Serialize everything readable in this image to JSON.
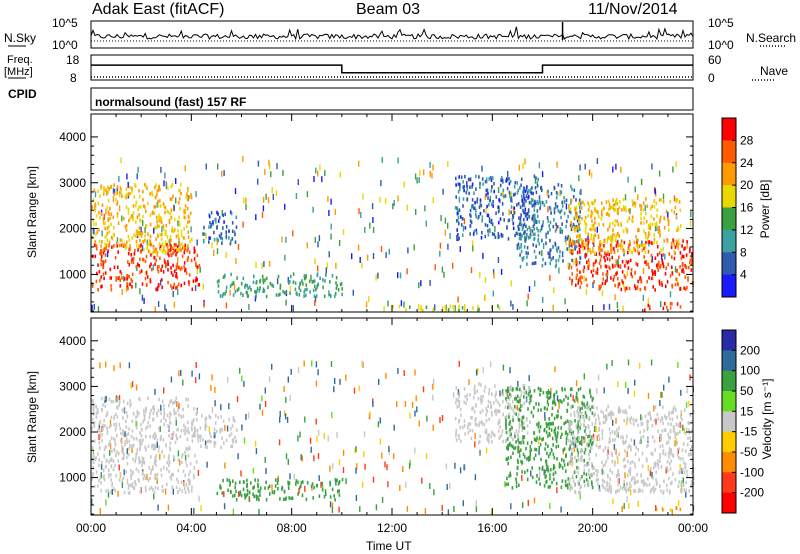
{
  "header": {
    "title": "Adak East (fitACF)",
    "beam": "Beam 03",
    "date": "11/Nov/2014"
  },
  "status_panels": {
    "nsky_label": "N.Sky",
    "nsearch_label": "N.Search",
    "freq_label": "Freq.",
    "freq_unit": "[MHz]",
    "nave_label": "Nave",
    "cpid_label": "CPID",
    "cpid_value": "normalsound (fast) 157 RF",
    "noise_ticks": [
      "10^5",
      "10^0"
    ],
    "freq_ticks": [
      "18",
      "8"
    ],
    "nave_ticks": [
      "60",
      "0"
    ],
    "freq_steps": [
      {
        "t": 0.0,
        "mhz": 14.3
      },
      {
        "t": 10.0,
        "mhz": 10.8
      },
      {
        "t": 18.0,
        "mhz": 14.3
      }
    ]
  },
  "chart_data": [
    {
      "type": "heatmap",
      "name": "power",
      "xlabel": "Time UT",
      "ylabel": "Slant Range [km]",
      "xlim": [
        0,
        24
      ],
      "ylim": [
        180,
        4500
      ],
      "x_ticks": [
        "00:00",
        "04:00",
        "08:00",
        "12:00",
        "16:00",
        "20:00",
        "00:00"
      ],
      "y_ticks": [
        "1000",
        "2000",
        "3000",
        "4000"
      ],
      "colorbar_label": "Power [dB]",
      "colorbar_ticks": [
        "28",
        "24",
        "20",
        "16",
        "12",
        "8",
        "4"
      ],
      "colorbar_colors": [
        "#ff0000",
        "#ff5a00",
        "#ff9a00",
        "#e8d800",
        "#3aa040",
        "#3aa0a0",
        "#2e5ab0",
        "#1a1aff"
      ],
      "regions": [
        {
          "t0": 0.0,
          "t1": 4.3,
          "r0": 700,
          "r1": 1700,
          "level": 28
        },
        {
          "t0": 0.0,
          "t1": 4.0,
          "r0": 1500,
          "r1": 3000,
          "level": 20
        },
        {
          "t0": 4.4,
          "t1": 5.8,
          "r0": 1700,
          "r1": 2400,
          "level": 6
        },
        {
          "t0": 5.0,
          "t1": 10.0,
          "r0": 550,
          "r1": 1050,
          "level": 12
        },
        {
          "t0": 14.5,
          "t1": 17.8,
          "r0": 1800,
          "r1": 3200,
          "level": 6
        },
        {
          "t0": 17.0,
          "t1": 19.5,
          "r0": 1200,
          "r1": 3000,
          "level": 8
        },
        {
          "t0": 19.0,
          "t1": 24.0,
          "r0": 700,
          "r1": 1800,
          "level": 28
        },
        {
          "t0": 19.0,
          "t1": 23.5,
          "r0": 1500,
          "r1": 2700,
          "level": 20
        },
        {
          "t0": 22.0,
          "t1": 23.5,
          "r0": 250,
          "r1": 400,
          "level": 28
        },
        {
          "t0": 12.0,
          "t1": 17.0,
          "r0": 250,
          "r1": 350,
          "level": 16
        }
      ]
    },
    {
      "type": "heatmap",
      "name": "velocity",
      "xlabel": "Time UT",
      "ylabel": "Slant Range [km]",
      "xlim": [
        0,
        24
      ],
      "ylim": [
        180,
        4500
      ],
      "x_ticks": [
        "00:00",
        "04:00",
        "08:00",
        "12:00",
        "16:00",
        "20:00",
        "00:00"
      ],
      "y_ticks": [
        "1000",
        "2000",
        "3000",
        "4000"
      ],
      "colorbar_label": "Velocity [m s⁻¹]",
      "colorbar_ticks": [
        "200",
        "100",
        "50",
        "15",
        "-15",
        "-50",
        "-100",
        "-200"
      ],
      "colorbar_colors": [
        "#2a2aa8",
        "#2e6a9a",
        "#3aa040",
        "#66dd22",
        "#c8c8c8",
        "#ffcc00",
        "#ff8c00",
        "#ff3a1a",
        "#ff0000"
      ],
      "regions": [
        {
          "t0": 0.0,
          "t1": 4.2,
          "r0": 700,
          "r1": 2800,
          "level": 0
        },
        {
          "t0": 4.0,
          "t1": 5.8,
          "r0": 1700,
          "r1": 2400,
          "level": 0
        },
        {
          "t0": 5.0,
          "t1": 10.0,
          "r0": 550,
          "r1": 1000,
          "level": 60
        },
        {
          "t0": 14.5,
          "t1": 17.5,
          "r0": 1800,
          "r1": 3100,
          "level": 0
        },
        {
          "t0": 16.5,
          "t1": 20.0,
          "r0": 800,
          "r1": 3000,
          "level": 60
        },
        {
          "t0": 19.0,
          "t1": 24.0,
          "r0": 700,
          "r1": 2600,
          "level": 0
        },
        {
          "t0": 22.5,
          "t1": 23.5,
          "r0": 250,
          "r1": 380,
          "level": -60
        }
      ]
    }
  ]
}
